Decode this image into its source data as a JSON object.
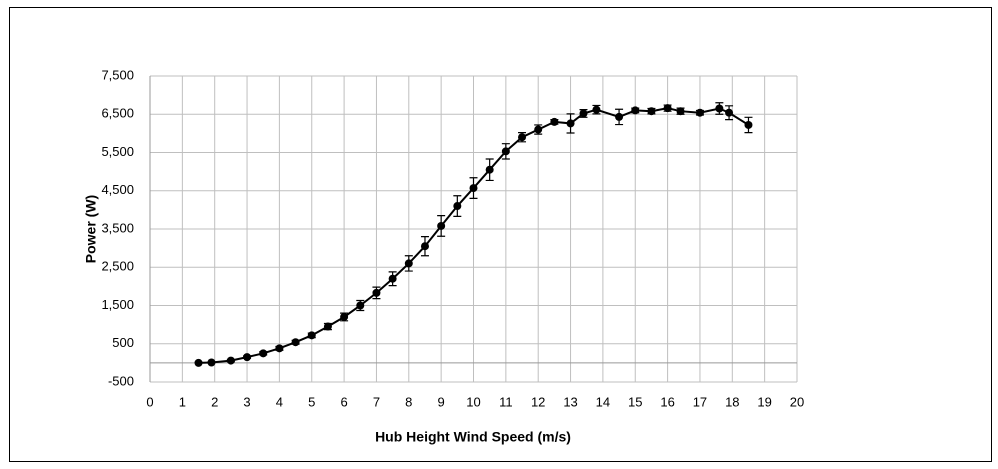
{
  "chart_data": {
    "type": "line",
    "x_label": "Hub Height Wind Speed (m/s)",
    "y_label": "Power (W)",
    "x": [
      1.5,
      1.9,
      2.5,
      3.0,
      3.5,
      4.0,
      4.5,
      5.0,
      5.5,
      6.0,
      6.5,
      7.0,
      7.5,
      8.0,
      8.5,
      9.0,
      9.5,
      10.0,
      10.5,
      11.0,
      11.5,
      12.0,
      12.5,
      13.0,
      13.4,
      13.8,
      14.5,
      15.0,
      15.5,
      16.0,
      16.4,
      17.0,
      17.6,
      17.9,
      18.5
    ],
    "series": [
      {
        "color": "#000000",
        "values": [
          0,
          10,
          60,
          150,
          250,
          380,
          540,
          720,
          950,
          1200,
          1500,
          1830,
          2200,
          2600,
          3050,
          3580,
          4100,
          4570,
          5050,
          5530,
          5900,
          6100,
          6300,
          6260,
          6520,
          6620,
          6430,
          6600,
          6580,
          6660,
          6580,
          6540,
          6650,
          6540,
          6220
        ],
        "errors": [
          0,
          0,
          30,
          30,
          40,
          50,
          50,
          60,
          80,
          100,
          130,
          150,
          180,
          200,
          250,
          270,
          270,
          270,
          280,
          200,
          120,
          120,
          60,
          250,
          100,
          110,
          200,
          60,
          70,
          80,
          80,
          60,
          150,
          180,
          200
        ]
      }
    ],
    "xlim": [
      0,
      20
    ],
    "xticks": [
      0,
      1,
      2,
      3,
      4,
      5,
      6,
      7,
      8,
      9,
      10,
      11,
      12,
      13,
      14,
      15,
      16,
      17,
      18,
      19,
      20
    ],
    "ylim": [
      -500,
      7500
    ],
    "yticks": [
      -500,
      500,
      {
        "value": 1500,
        "label": "1,500"
      },
      {
        "value": 2500,
        "label": "2,500"
      },
      {
        "value": 3500,
        "label": "3,500"
      },
      {
        "value": 4500,
        "label": "4,500"
      },
      {
        "value": 5500,
        "label": "5,500"
      },
      {
        "value": 6500,
        "label": "6,500"
      },
      {
        "value": 7500,
        "label": "7,500"
      }
    ],
    "grid": true
  }
}
